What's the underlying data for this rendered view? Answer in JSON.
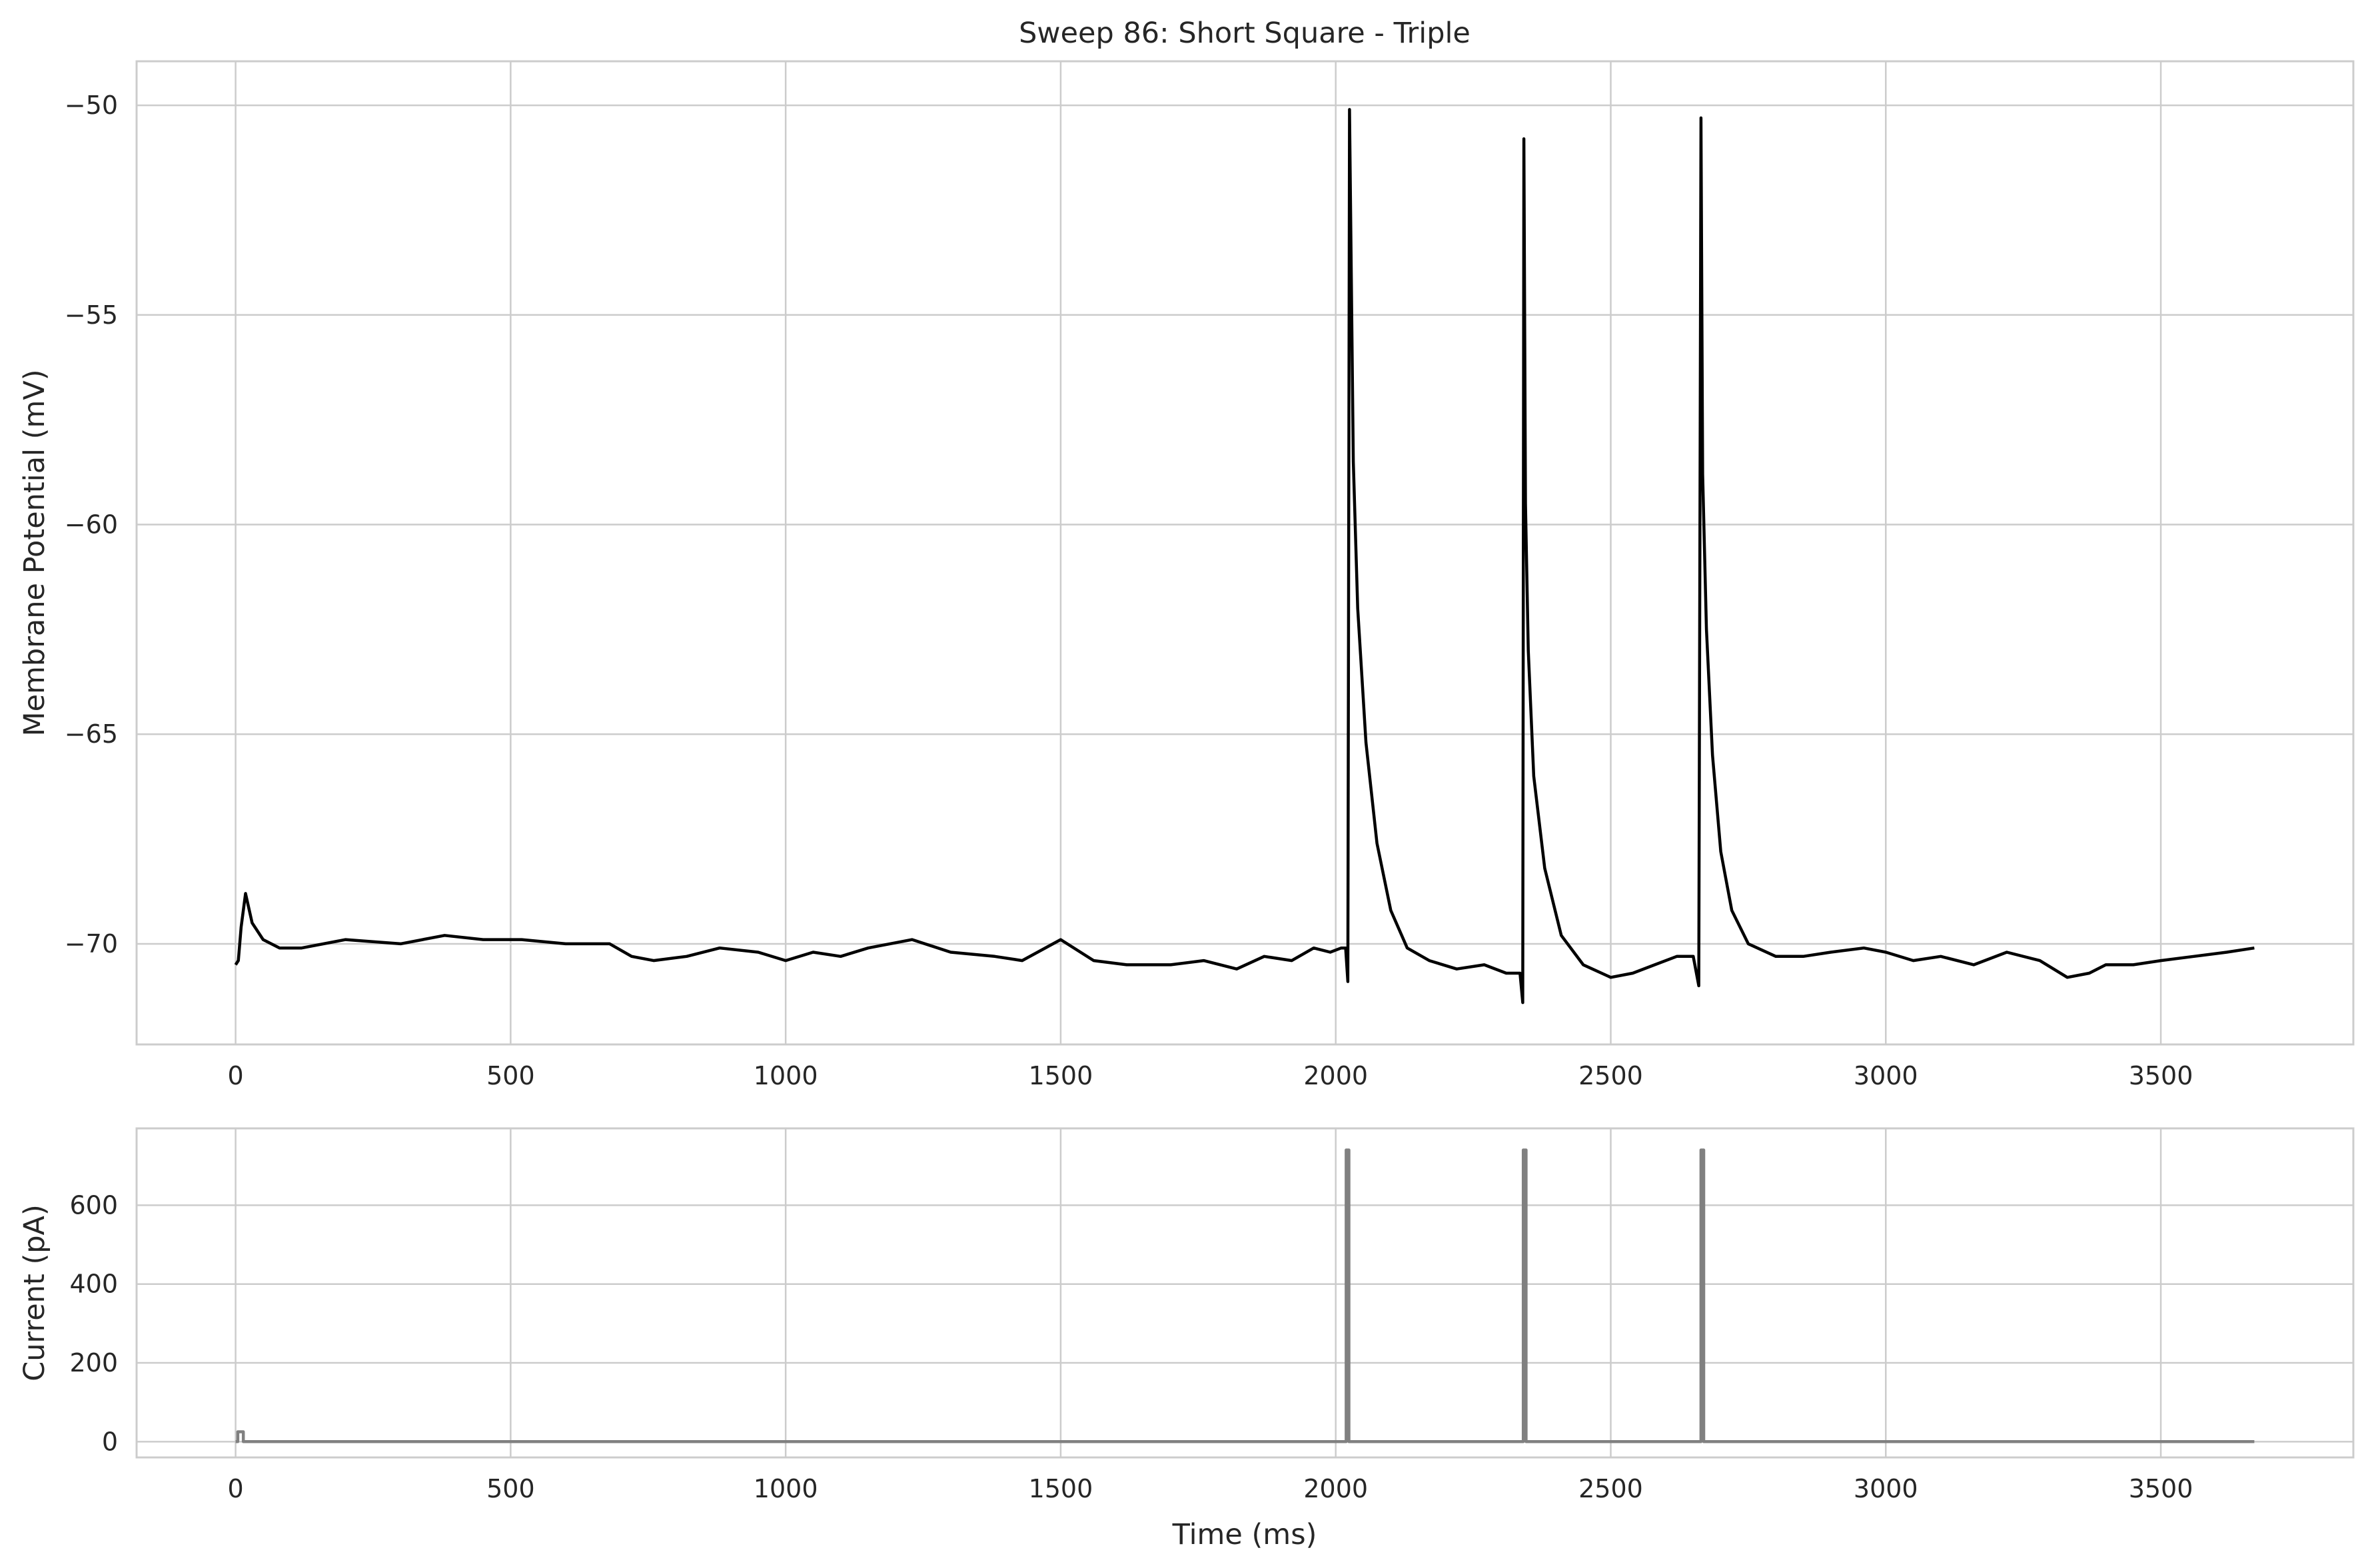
{
  "chart_data": [
    {
      "type": "line",
      "title": "Sweep 86: Short Square - Triple",
      "xlabel": "",
      "ylabel": "Membrane Potential (mV)",
      "xlim": [
        -180,
        3850
      ],
      "ylim": [
        -72.4,
        -48.95
      ],
      "xticks": [
        0,
        500,
        1000,
        1500,
        2000,
        2500,
        3000,
        3500
      ],
      "yticks": [
        -70,
        -65,
        -60,
        -55,
        -50
      ],
      "grid": true,
      "series": [
        {
          "color": "#000000",
          "x": [
            0,
            5,
            10,
            18,
            30,
            50,
            80,
            120,
            200,
            300,
            380,
            450,
            520,
            600,
            680,
            720,
            760,
            820,
            880,
            950,
            1000,
            1050,
            1100,
            1150,
            1230,
            1300,
            1380,
            1430,
            1500,
            1560,
            1620,
            1700,
            1760,
            1820,
            1870,
            1920,
            1960,
            1990,
            2010,
            2018,
            2022,
            2025,
            2032,
            2040,
            2055,
            2075,
            2100,
            2130,
            2170,
            2220,
            2270,
            2310,
            2335,
            2340,
            2342,
            2345,
            2350,
            2360,
            2380,
            2410,
            2450,
            2500,
            2540,
            2580,
            2620,
            2650,
            2660,
            2664,
            2667,
            2674,
            2685,
            2700,
            2720,
            2750,
            2800,
            2850,
            2900,
            2960,
            3000,
            3050,
            3100,
            3160,
            3220,
            3280,
            3330,
            3370,
            3400,
            3450,
            3500,
            3560,
            3620,
            3670
          ],
          "y": [
            -70.5,
            -70.4,
            -69.6,
            -68.8,
            -69.5,
            -69.9,
            -70.1,
            -70.1,
            -69.9,
            -70.0,
            -69.8,
            -69.9,
            -69.9,
            -70.0,
            -70.0,
            -70.3,
            -70.4,
            -70.3,
            -70.1,
            -70.2,
            -70.4,
            -70.2,
            -70.3,
            -70.1,
            -69.9,
            -70.2,
            -70.3,
            -70.4,
            -69.9,
            -70.4,
            -70.5,
            -70.5,
            -70.4,
            -70.6,
            -70.3,
            -70.4,
            -70.1,
            -70.2,
            -70.1,
            -70.1,
            -70.9,
            -50.1,
            -58.5,
            -62.0,
            -65.2,
            -67.6,
            -69.2,
            -70.1,
            -70.4,
            -70.6,
            -70.5,
            -70.7,
            -70.7,
            -71.4,
            -50.8,
            -59.5,
            -63.0,
            -66.0,
            -68.2,
            -69.8,
            -70.5,
            -70.8,
            -70.7,
            -70.5,
            -70.3,
            -70.3,
            -71.0,
            -50.3,
            -58.8,
            -62.5,
            -65.5,
            -67.8,
            -69.2,
            -70.0,
            -70.3,
            -70.3,
            -70.2,
            -70.1,
            -70.2,
            -70.4,
            -70.3,
            -70.5,
            -70.2,
            -70.4,
            -70.8,
            -70.7,
            -70.5,
            -70.5,
            -70.4,
            -70.3,
            -70.2,
            -70.1
          ]
        }
      ]
    },
    {
      "type": "line",
      "title": "",
      "xlabel": "Time (ms)",
      "ylabel": "Current (pA)",
      "xlim": [
        -180,
        3850
      ],
      "ylim": [
        -40,
        795
      ],
      "xticks": [
        0,
        500,
        1000,
        1500,
        2000,
        2500,
        3000,
        3500
      ],
      "yticks": [
        0,
        200,
        400,
        600
      ],
      "grid": true,
      "series": [
        {
          "color": "#808080",
          "x": [
            0,
            4,
            4,
            14,
            14,
            2019,
            2019,
            2024,
            2024,
            2341,
            2341,
            2346,
            2346,
            2664,
            2664,
            2669,
            2669,
            3670
          ],
          "y": [
            0,
            0,
            25,
            25,
            0,
            0,
            740,
            740,
            0,
            0,
            740,
            740,
            0,
            0,
            740,
            740,
            0,
            0
          ]
        }
      ]
    }
  ]
}
